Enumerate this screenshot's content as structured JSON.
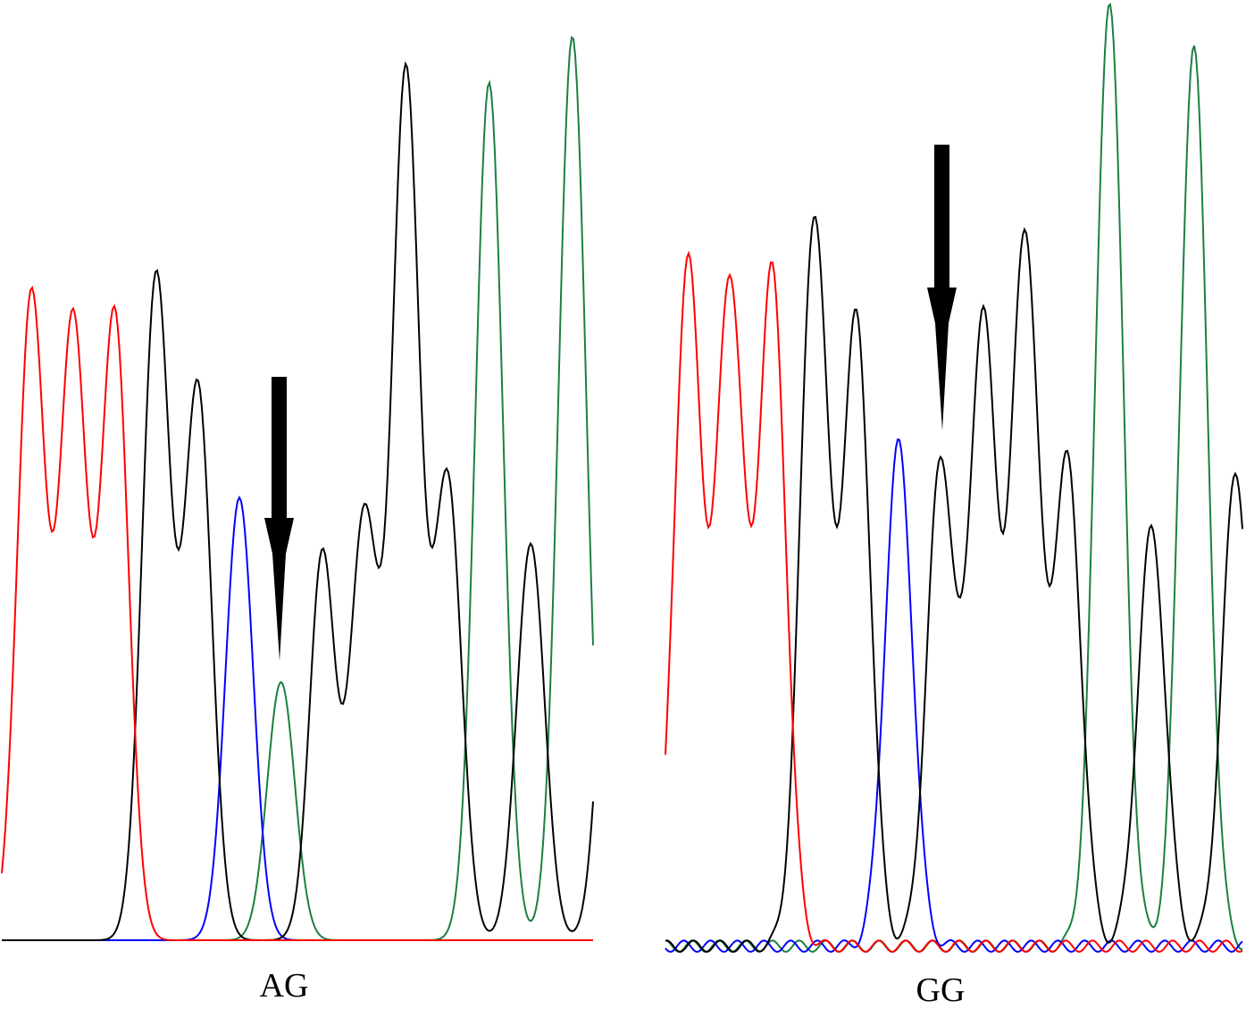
{
  "panels": [
    {
      "genotype_label": "AG",
      "peaks": [
        {
          "base": "T",
          "height": 0.7
        },
        {
          "base": "T",
          "height": 0.67
        },
        {
          "base": "T",
          "height": 0.68
        },
        {
          "base": "G",
          "height": 0.72
        },
        {
          "base": "G",
          "height": 0.6
        },
        {
          "base": "C",
          "height": 0.48
        },
        {
          "base": "A",
          "height": 0.28
        },
        {
          "base": "G",
          "height": 0.22
        },
        {
          "base": "G",
          "height": 0.46
        },
        {
          "base": "G",
          "height": 0.94
        },
        {
          "base": "G",
          "height": 0.5
        },
        {
          "base": "A",
          "height": 0.93
        },
        {
          "base": "G",
          "height": 0.43
        },
        {
          "base": "A",
          "height": 0.98
        },
        {
          "base": "G",
          "height": 0.47
        }
      ]
    },
    {
      "genotype_label": "GG",
      "peaks": [
        {
          "base": "T",
          "height": 0.72
        },
        {
          "base": "T",
          "height": 0.7
        },
        {
          "base": "T",
          "height": 0.71
        },
        {
          "base": "G",
          "height": 0.77
        },
        {
          "base": "G",
          "height": 0.66
        },
        {
          "base": "C",
          "height": 0.53
        },
        {
          "base": "G",
          "height": 0.51
        },
        {
          "base": "G",
          "height": 0.66
        },
        {
          "base": "G",
          "height": 0.75
        },
        {
          "base": "G",
          "height": 0.51
        },
        {
          "base": "A",
          "height": 1.0
        },
        {
          "base": "G",
          "height": 0.44
        },
        {
          "base": "A",
          "height": 0.95
        },
        {
          "base": "G",
          "height": 0.5
        }
      ]
    }
  ],
  "colors": {
    "A": "#1a8040",
    "C": "#0000ff",
    "G": "#000000",
    "T": "#ff0000",
    "arrow": "#000000"
  }
}
